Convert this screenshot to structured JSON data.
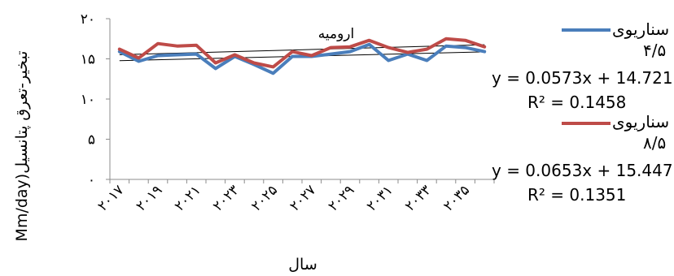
{
  "chart_data": {
    "type": "line",
    "title": "ارومیه",
    "xlabel": "سال",
    "ylabel": "Mm/day)تبخیر-تعرق پتانسیل",
    "ylim": [
      0,
      20
    ],
    "yticks": [
      "۰",
      "۵",
      "۱۰",
      "۱۵",
      "۲۰"
    ],
    "ytick_values": [
      0,
      5,
      10,
      15,
      20
    ],
    "x": [
      2017,
      2018,
      2019,
      2020,
      2021,
      2022,
      2023,
      2024,
      2025,
      2026,
      2027,
      2028,
      2029,
      2030,
      2031,
      2032,
      2033,
      2034,
      2035,
      2036
    ],
    "xtick_labels": [
      "۲۰۱۷",
      "۲۰۱۹",
      "۲۰۲۱",
      "۲۰۲۳",
      "۲۰۲۵",
      "۲۰۲۷",
      "۲۰۲۹",
      "۲۰۳۱",
      "۲۰۳۳",
      "۲۰۳۵"
    ],
    "xtick_values": [
      2017,
      2019,
      2021,
      2023,
      2025,
      2027,
      2029,
      2031,
      2033,
      2035
    ],
    "series": [
      {
        "name": "سناریوی ۴/۵",
        "color": "#4a7ebb",
        "values": [
          15.9,
          14.7,
          15.4,
          15.5,
          15.6,
          13.8,
          15.3,
          14.3,
          13.2,
          15.3,
          15.3,
          15.6,
          15.9,
          16.8,
          14.8,
          15.6,
          14.8,
          16.6,
          16.4,
          15.9
        ],
        "trendline": {
          "slope": 0.0573,
          "intercept": 14.721,
          "equation": "y = 0.0573x + 14.721",
          "r2": "R² = 0.1458"
        }
      },
      {
        "name": "سناریوی ۸/۵",
        "color": "#be4b48",
        "values": [
          16.2,
          15.1,
          16.9,
          16.6,
          16.7,
          14.5,
          15.5,
          14.5,
          14.0,
          15.9,
          15.4,
          16.4,
          16.5,
          17.3,
          16.4,
          15.8,
          16.2,
          17.5,
          17.3,
          16.5
        ],
        "trendline": {
          "slope": 0.0653,
          "intercept": 15.447,
          "equation": "y = 0.0653x + 15.447",
          "r2": "R² = 0.1351"
        }
      }
    ],
    "grid": false,
    "legend": "right"
  },
  "legend": [
    {
      "line1": "سناریوی",
      "line2": "۴/۵"
    },
    {
      "line1": "سناریوی",
      "line2": "۸/۵"
    }
  ]
}
